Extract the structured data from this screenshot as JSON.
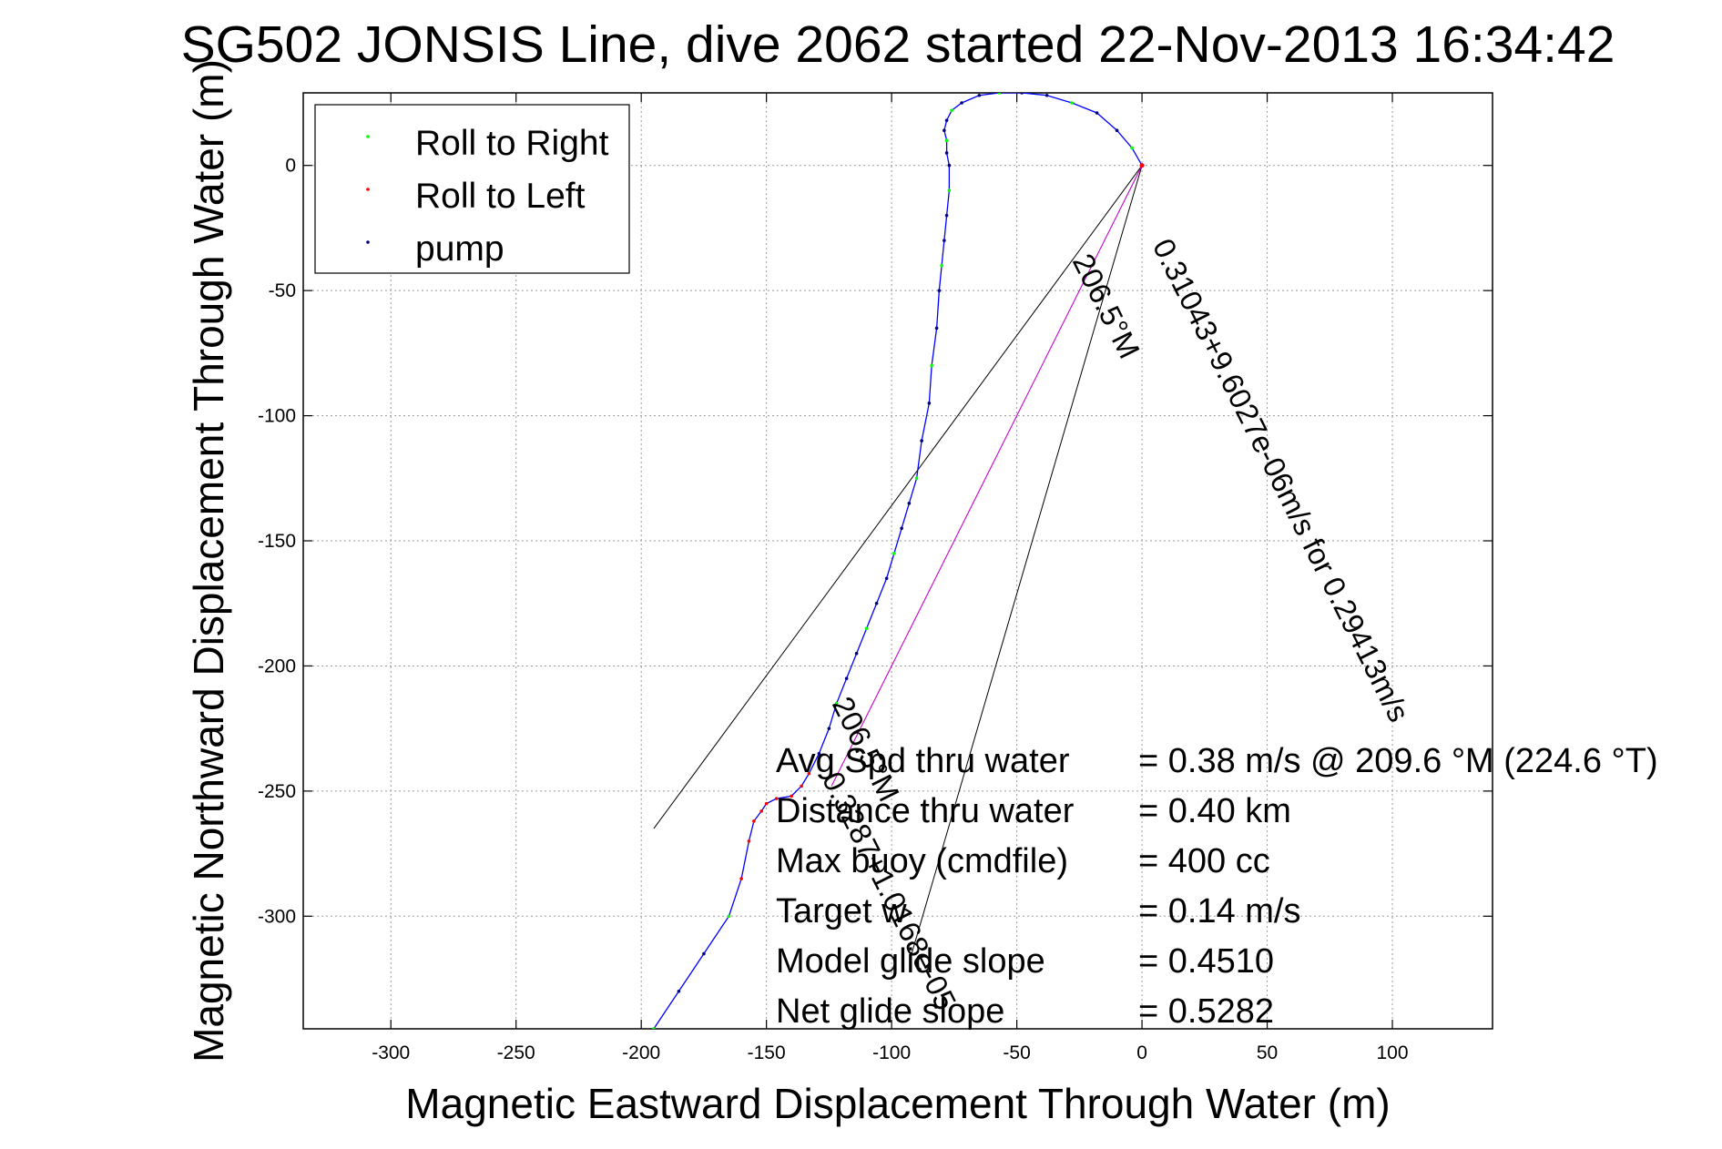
{
  "chart_data": {
    "type": "line",
    "title": "SG502 JONSIS Line, dive 2062 started 22-Nov-2013 16:34:42",
    "xlabel": "Magnetic Eastward Displacement Through Water (m)",
    "ylabel": "Magnetic Northward Displacement Through Water (m)",
    "xlim": [
      -335,
      140
    ],
    "ylim": [
      -345,
      29
    ],
    "xticks": [
      -300,
      -250,
      -200,
      -150,
      -100,
      -50,
      0,
      50,
      100
    ],
    "yticks": [
      0,
      -50,
      -100,
      -150,
      -200,
      -250,
      -300
    ],
    "grid": true,
    "legend_position": "top-left",
    "legend": [
      {
        "label": "Roll to Right",
        "color": "#00ff00"
      },
      {
        "label": "Roll to Left",
        "color": "#ff0000"
      },
      {
        "label": "pump",
        "color": "#000080"
      }
    ],
    "series": [
      {
        "name": "track",
        "color": "#0000ff",
        "x": [
          -195,
          -185,
          -175,
          -165,
          -160,
          -157,
          -155,
          -152,
          -150,
          -146,
          -140,
          -136,
          -133,
          -129,
          -125,
          -122,
          -118,
          -114,
          -110,
          -106,
          -102,
          -99,
          -96,
          -93,
          -90,
          -88,
          -85,
          -84,
          -82,
          -81,
          -80,
          -79,
          -78,
          -77,
          -77,
          -78,
          -78,
          -79,
          -78,
          -76,
          -72,
          -65,
          -57,
          -48,
          -38,
          -28,
          -18,
          -10,
          -4,
          0
        ],
        "y": [
          -345,
          -330,
          -315,
          -300,
          -285,
          -270,
          -262,
          -258,
          -255,
          -253,
          -252,
          -248,
          -243,
          -235,
          -225,
          -215,
          -205,
          -195,
          -185,
          -175,
          -165,
          -155,
          -145,
          -135,
          -125,
          -110,
          -95,
          -80,
          -65,
          -50,
          -40,
          -30,
          -20,
          -10,
          0,
          5,
          10,
          14,
          18,
          22,
          25,
          28,
          29,
          29,
          28,
          25,
          21,
          14,
          7,
          0
        ]
      },
      {
        "name": "heading line",
        "color": "#cc00cc",
        "x": [
          0,
          -124
        ],
        "y": [
          0,
          -248
        ]
      }
    ],
    "reference_lines": [
      {
        "x": [
          0,
          -195
        ],
        "y": [
          0,
          -265
        ]
      },
      {
        "x": [
          0,
          -92
        ],
        "y": [
          0,
          -315
        ]
      }
    ],
    "annotations": [
      {
        "text": "206.5°M",
        "x": -28,
        "y": -38,
        "angle": 63.4
      },
      {
        "text": "0.31043+9.6027e-06m/s for 0.29413m/s",
        "x": 4,
        "y": -32,
        "angle": 63.4
      },
      {
        "text": "206.5°M",
        "x": -124,
        "y": -215,
        "angle": 63.4
      },
      {
        "text": "0.3287+1.0168e-05",
        "x": -128,
        "y": -245,
        "angle": 63.4
      }
    ],
    "stats": [
      {
        "label": "Avg Spd thru water",
        "value": "=  0.38 m/s @ 209.6 °M (224.6 °T)"
      },
      {
        "label": "Distance thru water",
        "value": "=  0.40 km"
      },
      {
        "label": "Max buoy (cmdfile)",
        "value": "= 400 cc"
      },
      {
        "label": "Target w",
        "value": "= 0.14 m/s"
      },
      {
        "label": "Model glide slope",
        "value": "= 0.4510"
      },
      {
        "label": "Net glide slope",
        "value": "= 0.5282"
      }
    ]
  }
}
